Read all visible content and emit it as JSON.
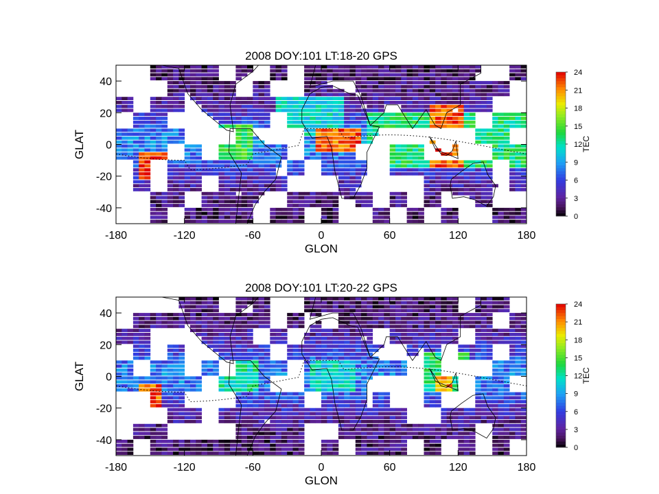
{
  "chart_data": [
    {
      "type": "heatmap",
      "title": "2008 DOY:101  LT:18-20 GPS",
      "xlabel": "GLON",
      "ylabel": "GLAT",
      "xlim": [
        -180,
        180
      ],
      "ylim": [
        -50,
        50
      ],
      "xticks": [
        -180,
        -120,
        -60,
        0,
        60,
        120,
        180
      ],
      "yticks": [
        -40,
        -20,
        0,
        20,
        40
      ],
      "colorbar": {
        "label": "TEC",
        "range": [
          0,
          24
        ],
        "ticks": [
          0,
          3,
          6,
          9,
          12,
          15,
          18,
          21,
          24
        ]
      },
      "overlays": [
        "coastlines",
        "magnetic-equator-dotted"
      ],
      "lon_bin_deg": 5,
      "lat_bin_deg": 2.5,
      "high_regions": [
        {
          "lon": [
            -160,
            -135
          ],
          "lat": [
            -22,
            -6
          ],
          "tec": 23
        },
        {
          "lon": [
            -5,
            35
          ],
          "lat": [
            -5,
            10
          ],
          "tec": 22
        },
        {
          "lon": [
            95,
            125
          ],
          "lat": [
            -15,
            25
          ],
          "tec": 22
        }
      ],
      "moderate_regions": [
        {
          "lon": [
            -100,
            -60
          ],
          "lat": [
            -10,
            12
          ],
          "tec": 14
        },
        {
          "lon": [
            40,
            95
          ],
          "lat": [
            -15,
            20
          ],
          "tec": 13
        },
        {
          "lon": [
            125,
            180
          ],
          "lat": [
            -15,
            20
          ],
          "tec": 13
        },
        {
          "lon": [
            -40,
            20
          ],
          "lat": [
            5,
            30
          ],
          "tec": 11
        }
      ],
      "tec_min": 0,
      "tec_max": 24
    },
    {
      "type": "heatmap",
      "title": "2008 DOY:101  LT:20-22 GPS",
      "xlabel": "GLON",
      "ylabel": "GLAT",
      "xlim": [
        -180,
        180
      ],
      "ylim": [
        -50,
        50
      ],
      "xticks": [
        -180,
        -120,
        -60,
        0,
        60,
        120,
        180
      ],
      "yticks": [
        -40,
        -20,
        0,
        20,
        40
      ],
      "colorbar": {
        "label": "TEC",
        "range": [
          0,
          24
        ],
        "ticks": [
          0,
          3,
          6,
          9,
          12,
          15,
          18,
          21,
          24
        ]
      },
      "overlays": [
        "coastlines",
        "magnetic-equator-dotted"
      ],
      "lon_bin_deg": 5,
      "lat_bin_deg": 2.5,
      "high_regions": [
        {
          "lon": [
            -160,
            -140
          ],
          "lat": [
            -22,
            -5
          ],
          "tec": 22
        },
        {
          "lon": [
            100,
            115
          ],
          "lat": [
            -10,
            0
          ],
          "tec": 21
        }
      ],
      "moderate_regions": [
        {
          "lon": [
            -90,
            -55
          ],
          "lat": [
            -10,
            10
          ],
          "tec": 12
        },
        {
          "lon": [
            -10,
            30
          ],
          "lat": [
            -10,
            10
          ],
          "tec": 11
        },
        {
          "lon": [
            90,
            130
          ],
          "lat": [
            -10,
            15
          ],
          "tec": 13
        }
      ],
      "tec_min": 0,
      "tec_max": 22
    }
  ]
}
